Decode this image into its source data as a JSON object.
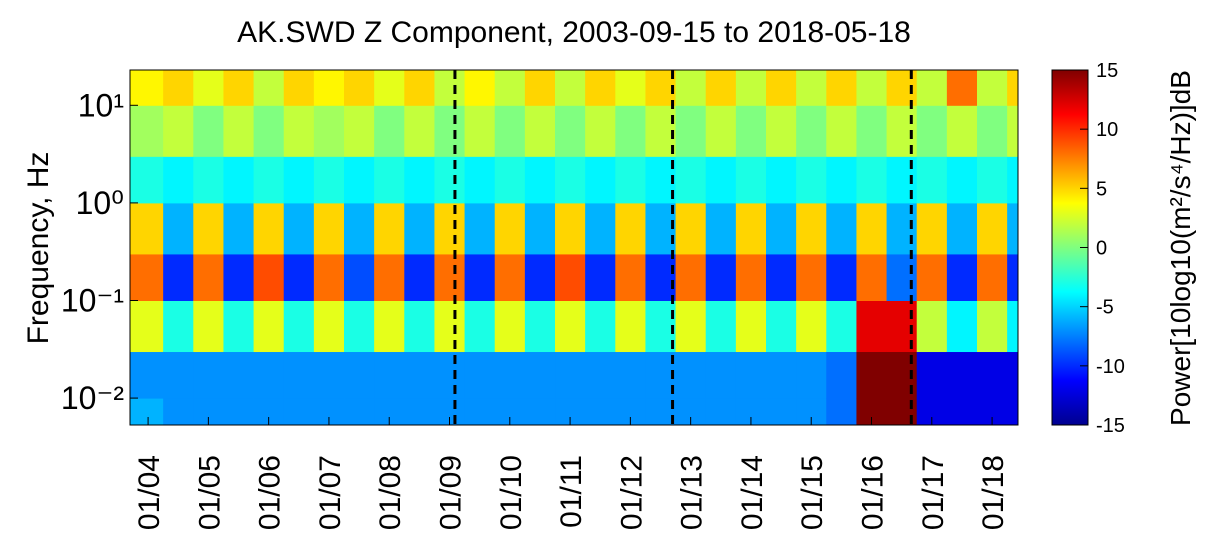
{
  "chart_data": {
    "type": "heatmap",
    "title": "AK.SWD Z Component, 2003-09-15 to 2018-05-18",
    "y_label": "Frequency, Hz",
    "colorbar_label": "Power[10log10(m²/s⁴/Hz)]dB",
    "log_y": true,
    "xlim": [
      2003.7,
      2018.43
    ],
    "ylim": [
      0.0053,
      23
    ],
    "clim": [
      -15,
      15
    ],
    "colormap": "jet",
    "xticks": [
      {
        "value": 2004,
        "label": "01/04"
      },
      {
        "value": 2005,
        "label": "01/05"
      },
      {
        "value": 2006,
        "label": "01/06"
      },
      {
        "value": 2007,
        "label": "01/07"
      },
      {
        "value": 2008,
        "label": "01/08"
      },
      {
        "value": 2009,
        "label": "01/09"
      },
      {
        "value": 2010,
        "label": "01/10"
      },
      {
        "value": 2011,
        "label": "01/11"
      },
      {
        "value": 2012,
        "label": "01/12"
      },
      {
        "value": 2013,
        "label": "01/13"
      },
      {
        "value": 2014,
        "label": "01/14"
      },
      {
        "value": 2015,
        "label": "01/15"
      },
      {
        "value": 2016,
        "label": "01/16"
      },
      {
        "value": 2017,
        "label": "01/17"
      },
      {
        "value": 2018,
        "label": "01/18"
      }
    ],
    "yticks": [
      {
        "value": 0.01,
        "label": "10⁻²"
      },
      {
        "value": 0.1,
        "label": "10⁻¹"
      },
      {
        "value": 1,
        "label": "10⁰"
      },
      {
        "value": 10,
        "label": "10¹"
      }
    ],
    "cticks": [
      -15,
      -10,
      -5,
      0,
      5,
      10,
      15
    ],
    "vlines": [
      2009.09,
      2012.7,
      2016.66
    ],
    "xbins": [
      2003.7,
      2004.25,
      2004.75,
      2005.25,
      2005.75,
      2006.25,
      2006.75,
      2007.25,
      2007.75,
      2008.25,
      2008.75,
      2009.25,
      2009.75,
      2010.25,
      2010.75,
      2011.25,
      2011.75,
      2012.25,
      2012.75,
      2013.25,
      2013.75,
      2014.25,
      2014.75,
      2015.25,
      2015.75,
      2016.25,
      2016.75,
      2017.25,
      2017.75,
      2018.25,
      2018.43
    ],
    "ybins": [
      0.0053,
      0.01,
      0.03,
      0.1,
      0.3,
      1,
      3,
      10,
      23
    ],
    "z": [
      [
        -6,
        -7,
        3,
        8,
        5,
        -3,
        1,
        4
      ],
      [
        -7,
        -7,
        -3,
        -10,
        -6,
        -4,
        2,
        5
      ],
      [
        -7,
        -7,
        3,
        8,
        5,
        -3,
        0,
        3
      ],
      [
        -7,
        -7,
        -3,
        -10,
        -6,
        -4,
        2,
        5
      ],
      [
        -7,
        -7,
        3,
        9,
        5,
        -3,
        0,
        2
      ],
      [
        -7,
        -7,
        -3,
        -10,
        -6,
        -4,
        2,
        5
      ],
      [
        -7,
        -7,
        3,
        8,
        5,
        -3,
        1,
        4
      ],
      [
        -7,
        -7,
        -3,
        -9,
        -6,
        -4,
        2,
        5
      ],
      [
        -7,
        -7,
        3,
        8,
        5,
        -3,
        0,
        3
      ],
      [
        -7,
        -7,
        -3,
        -10,
        -6,
        -4,
        2,
        5
      ],
      [
        -7,
        -7,
        3,
        8,
        5,
        -3,
        0,
        2
      ],
      [
        -7,
        -7,
        -3,
        -10,
        -6,
        -4,
        2,
        4
      ],
      [
        -7,
        -7,
        3,
        8,
        5,
        -3,
        0,
        2
      ],
      [
        -7,
        -7,
        -3,
        -10,
        -6,
        -4,
        2,
        5
      ],
      [
        -7,
        -7,
        3,
        9,
        5,
        -3,
        0,
        2
      ],
      [
        -7,
        -7,
        -3,
        -10,
        -6,
        -4,
        2,
        5
      ],
      [
        -7,
        -7,
        3,
        8,
        5,
        -3,
        0,
        3
      ],
      [
        -7,
        -7,
        -3,
        -10,
        -6,
        -4,
        2,
        5
      ],
      [
        -7,
        -7,
        3,
        8,
        5,
        -3,
        0,
        2
      ],
      [
        -7,
        -7,
        -3,
        -10,
        -6,
        -4,
        2,
        5
      ],
      [
        -7,
        -7,
        3,
        8,
        5,
        -3,
        0,
        2
      ],
      [
        -7,
        -7,
        -3,
        -10,
        -6,
        -4,
        2,
        5
      ],
      [
        -7,
        -7,
        3,
        8,
        5,
        -3,
        0,
        2
      ],
      [
        -8,
        -8,
        -3,
        -10,
        -6,
        -4,
        2,
        5
      ],
      [
        15,
        15,
        12,
        8,
        5,
        -3,
        0,
        2
      ],
      [
        15,
        15,
        12,
        -8,
        -6,
        -4,
        2,
        5
      ],
      [
        -12,
        -12,
        2,
        8,
        5,
        -3,
        0,
        2
      ],
      [
        -12,
        -12,
        -4,
        -10,
        -6,
        -4,
        2,
        8
      ],
      [
        -12,
        -12,
        2,
        8,
        5,
        -3,
        0,
        2
      ],
      [
        -12,
        -12,
        -4,
        -10,
        -6,
        -4,
        2,
        5
      ]
    ]
  }
}
